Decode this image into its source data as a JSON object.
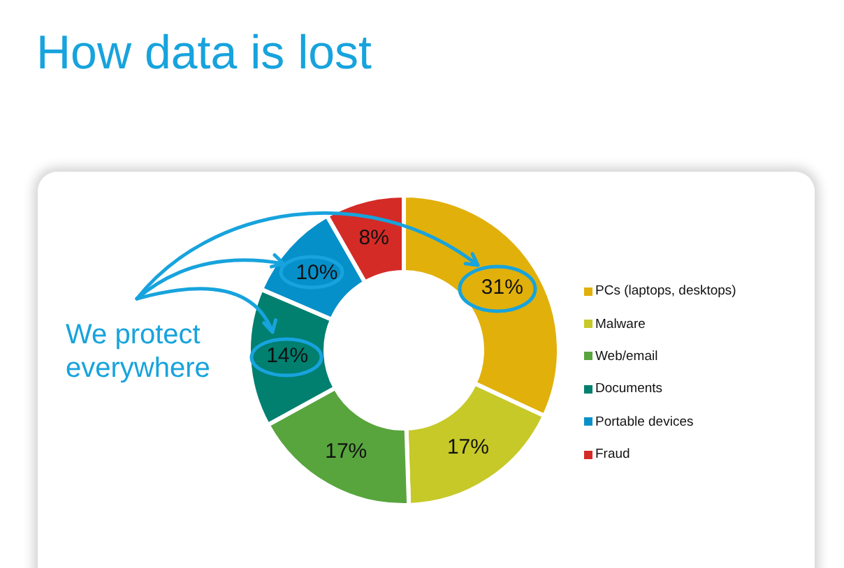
{
  "chart_data": {
    "type": "donut",
    "title": "How data is lost",
    "categories": [
      "PCs (laptops, desktops)",
      "Malware",
      "Web/email",
      "Documents",
      "Portable devices",
      "Fraud"
    ],
    "values": [
      31,
      17,
      17,
      14,
      10,
      8
    ],
    "colors": [
      "#e1b00b",
      "#c6c927",
      "#58a53e",
      "#017f6f",
      "#0690c9",
      "#d42b27"
    ],
    "value_labels": [
      "31%",
      "17%",
      "17%",
      "14%",
      "10%",
      "8%"
    ],
    "legend": "right",
    "annotations": [
      "We protect everywhere"
    ]
  }
}
